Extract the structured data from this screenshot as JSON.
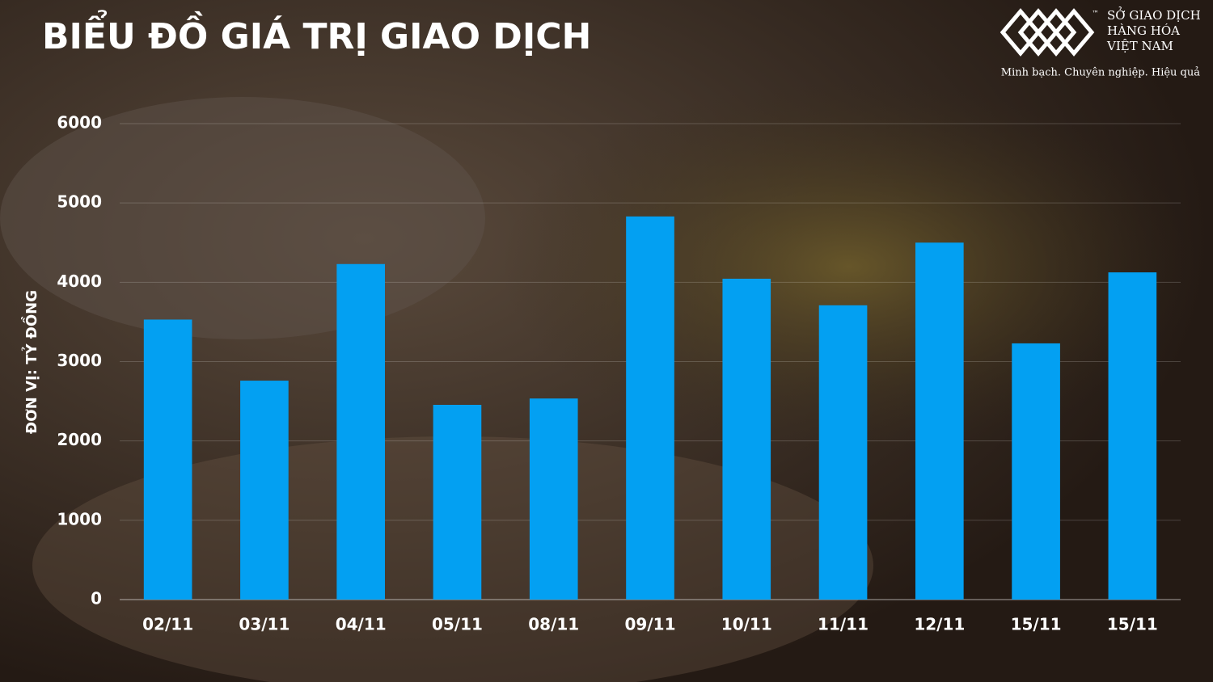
{
  "chart_data": {
    "type": "bar",
    "title": "BIỂU ĐỒ GIÁ TRỊ GIAO DỊCH",
    "y_label": "ĐƠN VỊ: TỶ ĐỒNG",
    "categories": [
      "02/11",
      "03/11",
      "04/11",
      "05/11",
      "08/11",
      "09/11",
      "10/11",
      "11/11",
      "12/11",
      "15/11",
      "15/11"
    ],
    "values": [
      3530,
      2760,
      4230,
      2455,
      2535,
      4830,
      4045,
      3710,
      4500,
      3230,
      4125
    ],
    "color": "#03a0f2",
    "ylim": [
      0,
      6000
    ],
    "yticks": [
      0,
      1000,
      2000,
      3000,
      4000,
      5000,
      6000
    ],
    "grid": true
  },
  "logo": {
    "trademark": "™",
    "lines": [
      "SỞ GIAO DỊCH",
      "HÀNG HÓA",
      "VIỆT NAM"
    ],
    "tagline": "Minh bạch. Chuyên nghiệp. Hiệu quả"
  }
}
